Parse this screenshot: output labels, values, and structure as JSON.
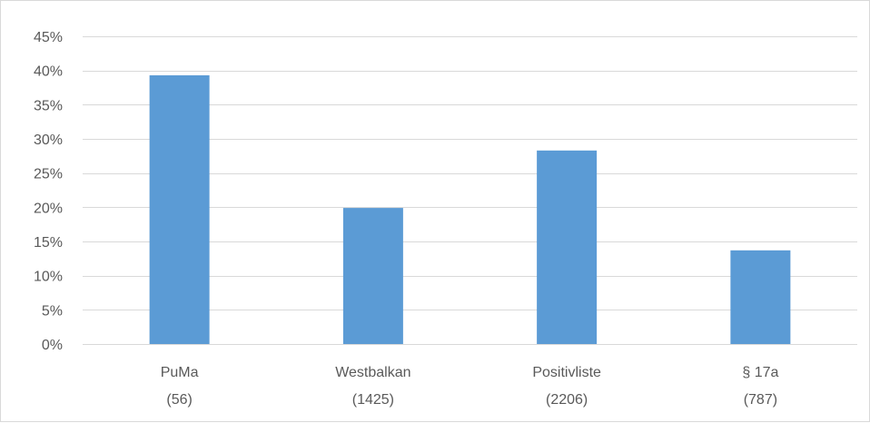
{
  "chart_data": {
    "type": "bar",
    "title": "",
    "xlabel": "",
    "ylabel": "",
    "categories": [
      [
        "PuMa",
        "(56)"
      ],
      [
        "Westbalkan",
        "(1425)"
      ],
      [
        "Positivliste",
        "(2206)"
      ],
      [
        "§ 17a",
        "(787)"
      ]
    ],
    "values": [
      0.393,
      0.199,
      0.283,
      0.137
    ],
    "ylim": [
      0,
      0.45
    ],
    "yticks": [
      0,
      0.05,
      0.1,
      0.15,
      0.2,
      0.25,
      0.3,
      0.35,
      0.4,
      0.45
    ],
    "ytick_labels": [
      "0%",
      "5%",
      "10%",
      "15%",
      "20%",
      "25%",
      "30%",
      "35%",
      "40%",
      "45%"
    ],
    "grid": true,
    "legend": "none",
    "bar_color": "#5b9bd5",
    "grid_color": "#d9d9d9"
  }
}
